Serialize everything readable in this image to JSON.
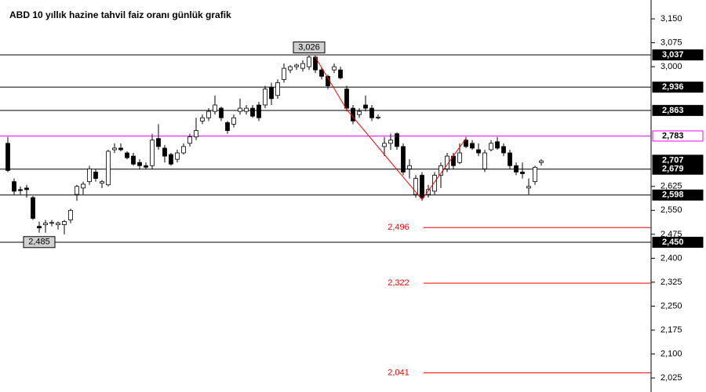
{
  "chart_data": {
    "type": "candlestick",
    "title": "ABD 10 yıllık hazine tahvil faiz oranı günlük grafik",
    "ylim": [
      1.981,
      3.209
    ],
    "yticks": [
      {
        "value": 3.15,
        "label": "3,150"
      },
      {
        "value": 3.075,
        "label": "3,075"
      },
      {
        "value": 3.0,
        "label": "3,000"
      },
      {
        "value": 2.625,
        "label": "2,625"
      },
      {
        "value": 2.55,
        "label": "2,550"
      },
      {
        "value": 2.475,
        "label": "2,475"
      },
      {
        "value": 2.4,
        "label": "2,400"
      },
      {
        "value": 2.325,
        "label": "2,325"
      },
      {
        "value": 2.25,
        "label": "2,250"
      },
      {
        "value": 2.175,
        "label": "2,175"
      },
      {
        "value": 2.1,
        "label": "2,100"
      },
      {
        "value": 2.025,
        "label": "2,025"
      }
    ],
    "open": [
      2.76,
      2.64,
      2.615,
      2.62,
      2.59,
      2.5,
      2.505,
      2.51,
      2.505,
      2.505,
      2.52,
      2.6,
      2.62,
      2.64,
      2.67,
      2.635,
      2.63,
      2.74,
      2.745,
      2.73,
      2.72,
      2.7,
      2.69,
      2.69,
      2.775,
      2.745,
      2.725,
      2.71,
      2.73,
      2.76,
      2.78,
      2.83,
      2.84,
      2.86,
      2.87,
      2.825,
      2.82,
      2.86,
      2.86,
      2.87,
      2.88,
      2.88,
      2.935,
      2.91,
      2.96,
      2.99,
      3.0,
      2.995,
      3.0,
      3.03,
      2.99,
      2.97,
      2.99,
      2.99,
      2.93,
      2.87,
      2.85,
      2.88,
      2.87,
      2.84,
      2.75,
      2.76,
      2.79,
      2.75,
      2.68,
      2.6,
      2.66,
      2.6,
      2.61,
      2.66,
      2.68,
      2.72,
      2.7,
      2.77,
      2.76,
      2.74,
      2.68,
      2.74,
      2.765,
      2.75,
      2.73,
      2.69,
      2.67,
      2.62,
      2.64,
      2.7
    ],
    "high": [
      2.78,
      2.65,
      2.625,
      2.63,
      2.595,
      2.515,
      2.52,
      2.52,
      2.515,
      2.52,
      2.555,
      2.63,
      2.64,
      2.69,
      2.68,
      2.645,
      2.74,
      2.76,
      2.76,
      2.735,
      2.73,
      2.71,
      2.7,
      2.79,
      2.82,
      2.755,
      2.73,
      2.74,
      2.76,
      2.79,
      2.84,
      2.85,
      2.87,
      2.91,
      2.875,
      2.83,
      2.85,
      2.9,
      2.88,
      2.88,
      2.89,
      2.94,
      2.95,
      2.96,
      3.01,
      3.005,
      3.01,
      3.02,
      3.035,
      3.035,
      3.0,
      2.975,
      3.01,
      3.0,
      2.94,
      2.88,
      2.87,
      2.91,
      2.88,
      2.85,
      2.78,
      2.79,
      2.795,
      2.76,
      2.71,
      2.66,
      2.67,
      2.63,
      2.67,
      2.7,
      2.73,
      2.73,
      2.76,
      2.78,
      2.77,
      2.76,
      2.74,
      2.77,
      2.78,
      2.76,
      2.74,
      2.7,
      2.7,
      2.65,
      2.69,
      2.71
    ],
    "low": [
      2.67,
      2.6,
      2.6,
      2.59,
      2.52,
      2.48,
      2.48,
      2.5,
      2.49,
      2.475,
      2.51,
      2.58,
      2.6,
      2.63,
      2.64,
      2.62,
      2.625,
      2.73,
      2.735,
      2.71,
      2.69,
      2.68,
      2.68,
      2.68,
      2.74,
      2.7,
      2.69,
      2.7,
      2.725,
      2.75,
      2.77,
      2.82,
      2.83,
      2.85,
      2.83,
      2.79,
      2.81,
      2.85,
      2.85,
      2.84,
      2.83,
      2.87,
      2.88,
      2.9,
      2.95,
      2.98,
      2.99,
      2.985,
      2.99,
      2.98,
      2.96,
      2.93,
      2.98,
      2.96,
      2.86,
      2.82,
      2.84,
      2.86,
      2.83,
      2.835,
      2.72,
      2.74,
      2.74,
      2.66,
      2.65,
      2.59,
      2.58,
      2.59,
      2.6,
      2.62,
      2.67,
      2.68,
      2.695,
      2.745,
      2.74,
      2.72,
      2.67,
      2.735,
      2.74,
      2.72,
      2.68,
      2.66,
      2.65,
      2.6,
      2.63,
      2.69
    ],
    "close": [
      2.675,
      2.61,
      2.612,
      2.615,
      2.525,
      2.495,
      2.51,
      2.512,
      2.51,
      2.515,
      2.55,
      2.625,
      2.632,
      2.68,
      2.65,
      2.64,
      2.735,
      2.745,
      2.74,
      2.715,
      2.695,
      2.69,
      2.685,
      2.77,
      2.75,
      2.72,
      2.695,
      2.73,
      2.75,
      2.78,
      2.8,
      2.84,
      2.86,
      2.88,
      2.84,
      2.8,
      2.84,
      2.87,
      2.87,
      2.845,
      2.84,
      2.93,
      2.9,
      2.95,
      2.995,
      3.0,
      3.005,
      3.01,
      3.03,
      2.99,
      2.97,
      2.94,
      3.0,
      2.965,
      2.87,
      2.83,
      2.86,
      2.87,
      2.84,
      2.842,
      2.76,
      2.77,
      2.75,
      2.67,
      2.69,
      2.65,
      2.59,
      2.615,
      2.66,
      2.69,
      2.72,
      2.69,
      2.73,
      2.75,
      2.745,
      2.73,
      2.73,
      2.76,
      2.745,
      2.73,
      2.69,
      2.67,
      2.665,
      2.625,
      2.685,
      2.705
    ],
    "trend_line": {
      "color": "#ff0000",
      "x": [
        49,
        54,
        66,
        73
      ],
      "values": [
        3.03,
        2.866,
        2.584,
        2.775
      ]
    },
    "levels": [
      {
        "value": 3.037,
        "label": "3,037",
        "color": "#000000",
        "kind": "box"
      },
      {
        "value": 2.936,
        "label": "2,936",
        "color": "#000000",
        "kind": "box"
      },
      {
        "value": 2.863,
        "label": "2,863",
        "color": "#000000",
        "kind": "box"
      },
      {
        "value": 2.783,
        "label": "2,783",
        "color": "#ff00ff",
        "kind": "outline"
      },
      {
        "value": 2.707,
        "label": "2,707",
        "color": "#000000",
        "kind": "box-only"
      },
      {
        "value": 2.679,
        "label": "2,679",
        "color": "#000000",
        "kind": "box"
      },
      {
        "value": 2.598,
        "label": "2,598",
        "color": "#000000",
        "kind": "box"
      },
      {
        "value": 2.45,
        "label": "2,450",
        "color": "#000000",
        "kind": "box"
      },
      {
        "value": 2.496,
        "label": "2,496",
        "color": "#ff0000",
        "kind": "target"
      },
      {
        "value": 2.322,
        "label": "2,322",
        "color": "#ff0000",
        "kind": "target"
      },
      {
        "value": 2.041,
        "label": "2,041",
        "color": "#ff0000",
        "kind": "target"
      }
    ],
    "callouts": [
      {
        "x": 48,
        "value": 3.026,
        "label": "3,026",
        "side": "above"
      },
      {
        "x": 5,
        "value": 2.485,
        "label": "2,485",
        "side": "below"
      }
    ]
  }
}
